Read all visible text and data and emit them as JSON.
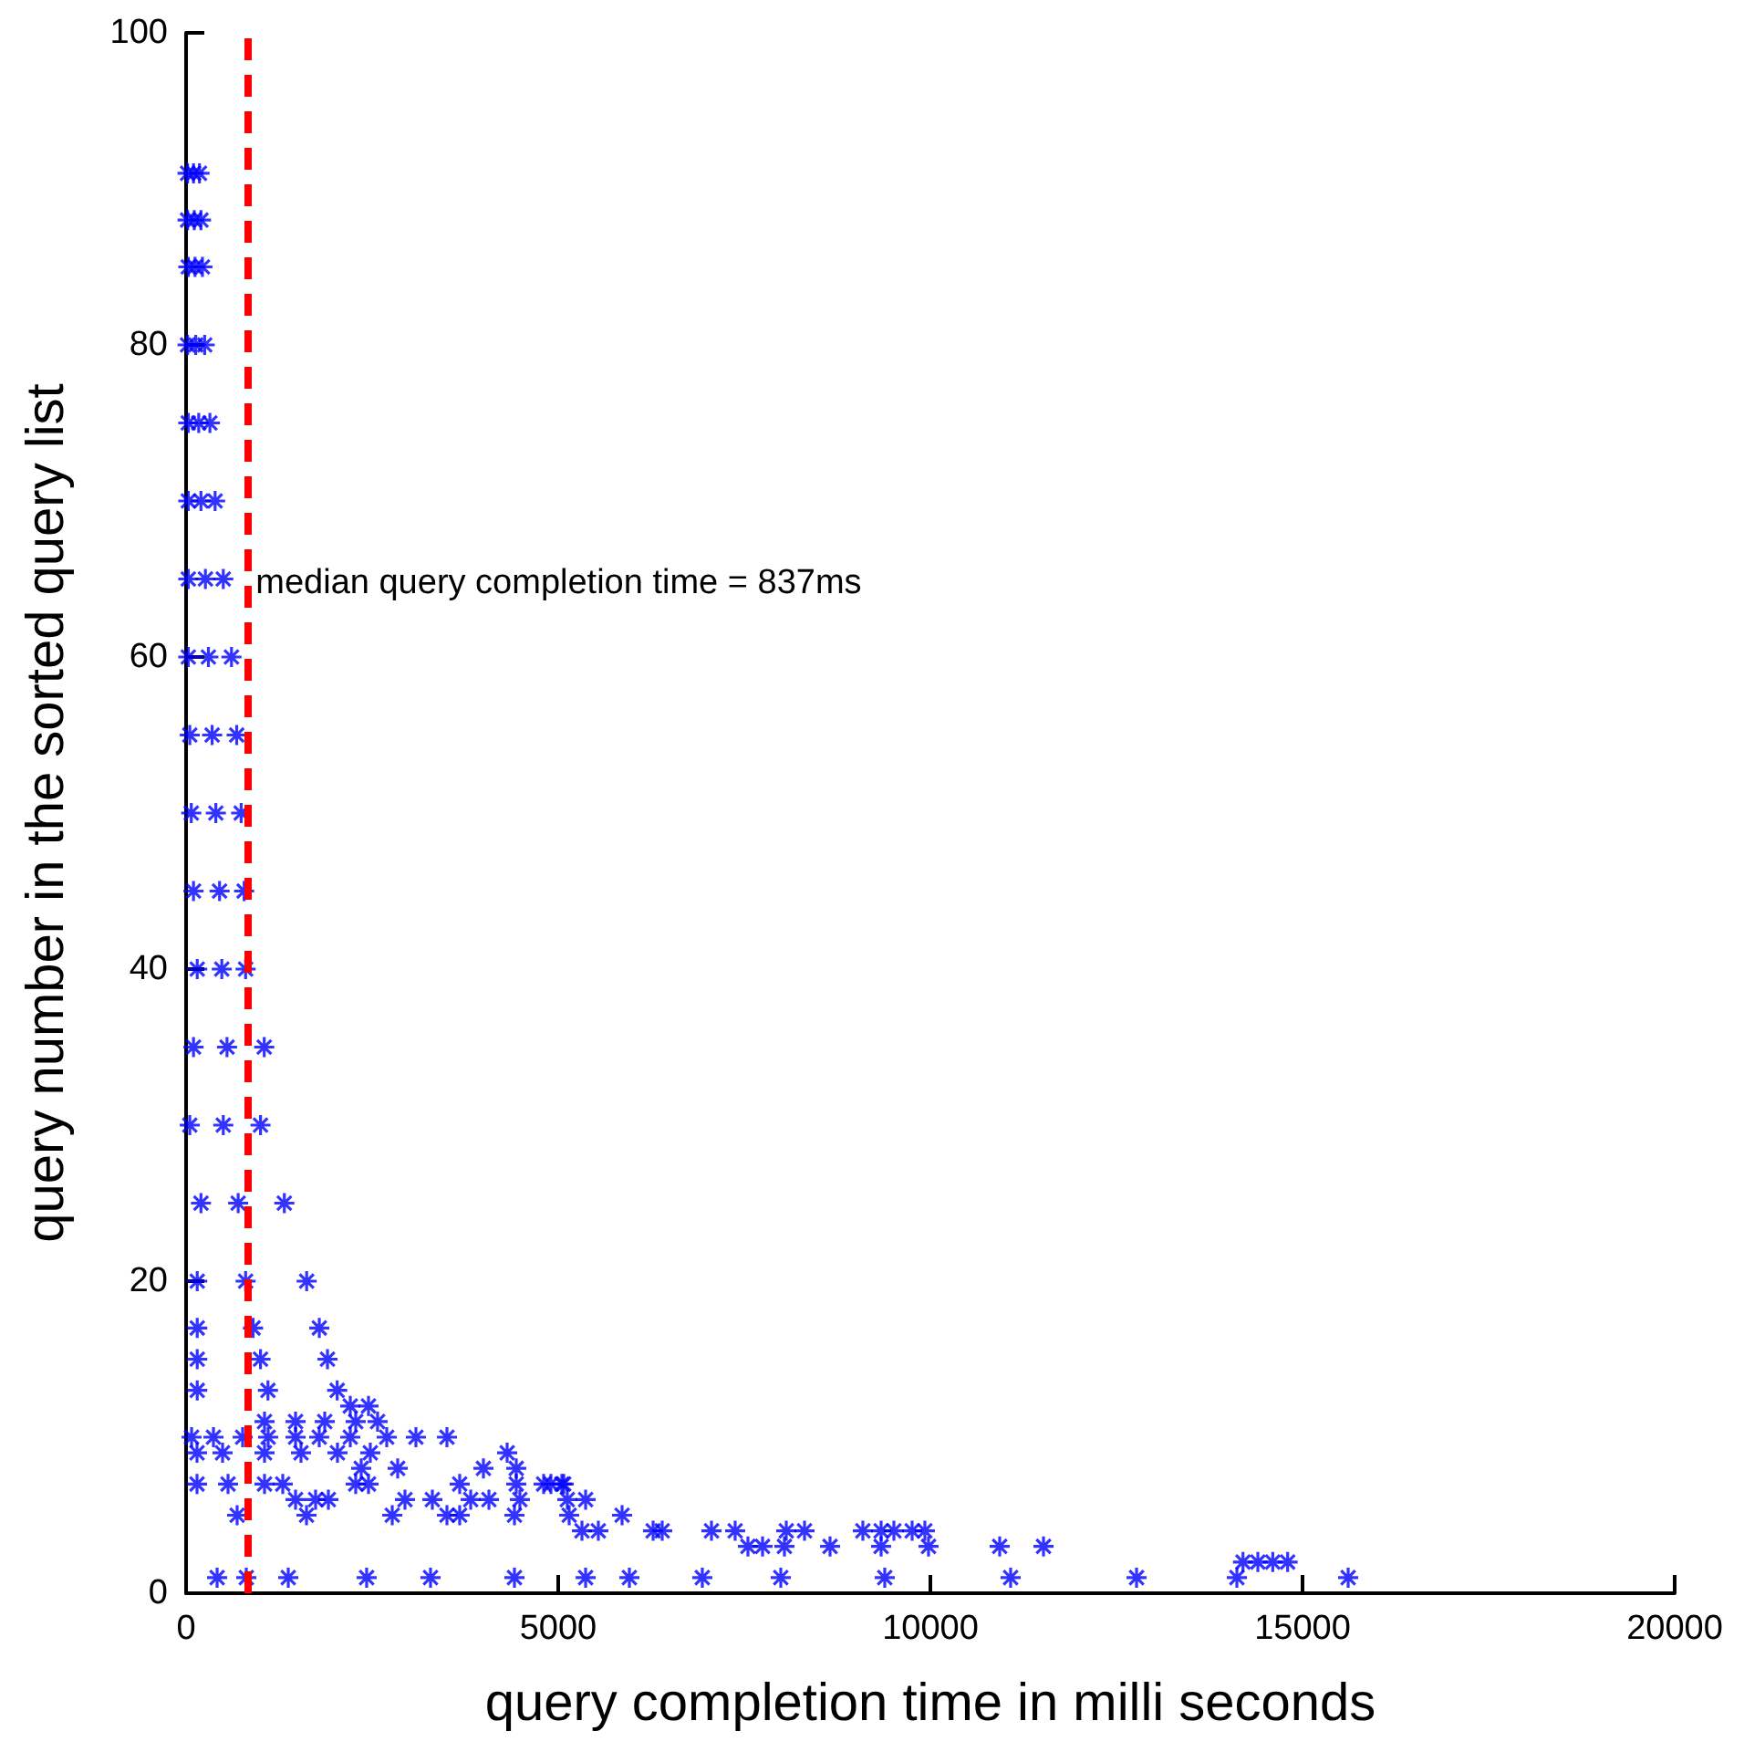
{
  "chart_data": {
    "type": "scatter",
    "xlabel": "query completion time in milli seconds",
    "ylabel": "query number in the sorted query list",
    "xlim": [
      0,
      20000
    ],
    "xticks": [
      0,
      5000,
      10000,
      15000,
      20000
    ],
    "ylim": [
      0,
      100
    ],
    "yticks": [
      0,
      20,
      40,
      60,
      80,
      100
    ],
    "grid": false,
    "marker": "cross",
    "ref_lines": [
      {
        "axis": "x",
        "value": 837,
        "label": "median query completion time = 837ms",
        "color": "#ff0000",
        "line_style": "dashed"
      }
    ],
    "series": [
      {
        "color": "#0000ff",
        "x": [
          20,
          100,
          180,
          20,
          110,
          200,
          30,
          120,
          220,
          20,
          130,
          250,
          30,
          170,
          320,
          30,
          200,
          390,
          30,
          260,
          500,
          30,
          300,
          610,
          50,
          350,
          680,
          70,
          400,
          740,
          100,
          450,
          780,
          150,
          480,
          800,
          100,
          550,
          1050,
          50,
          500,
          1000,
          200,
          700,
          1320,
          150,
          800,
          1620,
          150,
          900,
          1790,
          150,
          1000,
          1900,
          150,
          1100,
          2030,
          2206,
          2451,
          1054,
          1471,
          1863,
          2279,
          2573,
          74,
          368,
          760,
          1103,
          1471,
          1789,
          2206,
          2696,
          3088,
          3505,
          147,
          490,
          1054,
          1544,
          2034,
          2475,
          4314,
          2353,
          2843,
          3995,
          4436,
          147,
          564,
          1054,
          1299,
          2279,
          2451,
          3676,
          4436,
          4804,
          5049,
          4902,
          5074,
          1471,
          1740,
          1912,
          2941,
          3309,
          3824,
          4069,
          4485,
          5122,
          5368,
          686,
          1618,
          2770,
          3505,
          3676,
          4412,
          5147,
          5858,
          5319,
          5539,
          6275,
          6397,
          7059,
          7377,
          8064,
          8309,
          9093,
          9338,
          9510,
          9755,
          9926,
          7549,
          7745,
          8039,
          8652,
          9338,
          9975,
          10931,
          11520,
          14200,
          14400,
          14600,
          14800,
          417,
          809,
          1373,
          2426,
          3284,
          4412,
          5368,
          5956,
          6936,
          7990,
          9387,
          11078,
          12770,
          14118,
          15613
        ],
        "values": [
          91,
          91,
          91,
          88,
          88,
          88,
          85,
          85,
          85,
          80,
          80,
          80,
          75,
          75,
          75,
          70,
          70,
          70,
          65,
          65,
          65,
          60,
          60,
          60,
          55,
          55,
          55,
          50,
          50,
          50,
          45,
          45,
          45,
          40,
          40,
          40,
          35,
          35,
          35,
          30,
          30,
          30,
          25,
          25,
          25,
          20,
          20,
          20,
          17,
          17,
          17,
          15,
          15,
          15,
          13,
          13,
          13,
          12,
          12,
          11,
          11,
          11,
          11,
          11,
          10,
          10,
          10,
          10,
          10,
          10,
          10,
          10,
          10,
          10,
          9,
          9,
          9,
          9,
          9,
          9,
          9,
          8,
          8,
          8,
          8,
          7,
          7,
          7,
          7,
          7,
          7,
          7,
          7,
          7,
          7,
          7,
          7,
          6,
          6,
          6,
          6,
          6,
          6,
          6,
          6,
          6,
          6,
          5,
          5,
          5,
          5,
          5,
          5,
          5,
          5,
          4,
          4,
          4,
          4,
          4,
          4,
          4,
          4,
          4,
          4,
          4,
          4,
          4,
          3,
          3,
          3,
          3,
          3,
          3,
          3,
          3,
          2,
          2,
          2,
          2,
          1,
          1,
          1,
          1,
          1,
          1,
          1,
          1,
          1,
          1,
          1,
          1,
          1,
          1,
          1
        ]
      }
    ]
  }
}
